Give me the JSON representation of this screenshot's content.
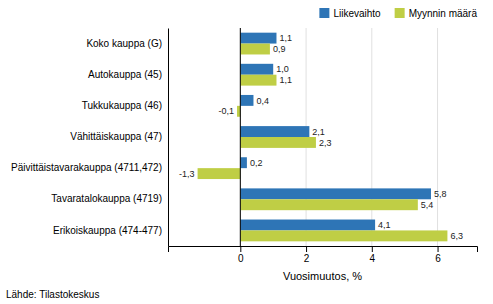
{
  "chart_data": {
    "type": "bar",
    "orientation": "horizontal",
    "categories": [
      "Erikoiskauppa (474-477)",
      "Tavaratalokauppa (4719)",
      "Päivittäistavarakauppa (4711,472)",
      "Vähittäiskauppa (47)",
      "Tukkukauppa (46)",
      "Autokauppa (45)",
      "Koko kauppa (G)"
    ],
    "series": [
      {
        "name": "Liikevaihto",
        "color": "#2E75B6",
        "values": [
          4.1,
          5.8,
          0.2,
          2.1,
          0.4,
          1.0,
          1.1
        ],
        "value_labels": [
          "4,1",
          "5,8",
          "0,2",
          "2,1",
          "0,4",
          "1,0",
          "1,1"
        ]
      },
      {
        "name": "Myynnin määrä",
        "color": "#BFCE45",
        "values": [
          6.3,
          5.4,
          -1.3,
          2.3,
          -0.1,
          1.1,
          0.9
        ],
        "value_labels": [
          "6,3",
          "5,4",
          "-1,3",
          "2,3",
          "-0,1",
          "1,1",
          "0,9"
        ]
      }
    ],
    "x_label": "Vuosimuutos, %",
    "xlim": [
      -2.2,
      7.2
    ],
    "xticks": [
      0,
      2,
      4,
      6
    ],
    "grid": true,
    "legend": "upper right",
    "data_labels": true,
    "annotations": [
      "Lähde: Tilastokeskus"
    ]
  }
}
